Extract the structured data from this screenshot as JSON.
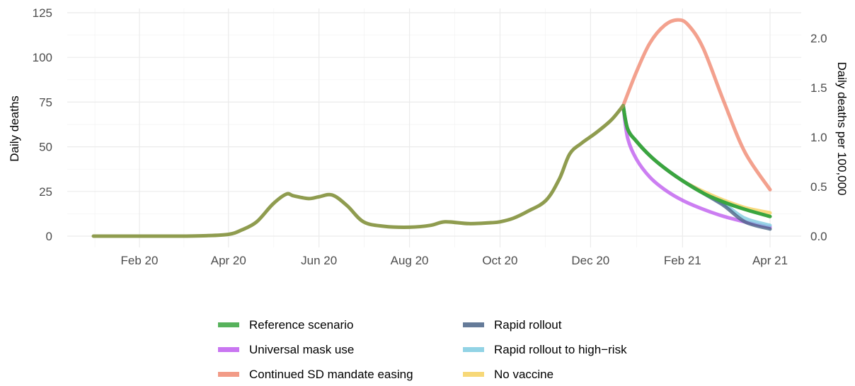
{
  "chart_data": {
    "type": "line",
    "ylabel": "Daily deaths",
    "y2label": "Daily deaths per 100,000",
    "ylim": [
      0,
      125
    ],
    "y2lim": [
      0,
      2.2
    ],
    "grid": true,
    "legend_position": "bottom",
    "x_tick_labels": [
      "Feb 20",
      "Apr 20",
      "Jun 20",
      "Aug 20",
      "Oct 20",
      "Dec 20",
      "Feb 21",
      "Apr 21"
    ],
    "x_tick_dates": [
      "2020-02-01",
      "2020-04-01",
      "2020-06-01",
      "2020-08-01",
      "2020-10-01",
      "2020-12-01",
      "2021-02-01",
      "2021-04-01"
    ],
    "y_ticks": [
      0,
      25,
      50,
      75,
      100,
      125
    ],
    "y2_ticks": [
      0.0,
      0.5,
      1.0,
      1.5,
      2.0
    ],
    "y2_tick_labels": [
      "0.0",
      "0.5",
      "1.0",
      "1.5",
      "2.0"
    ],
    "history": {
      "x": [
        "2020-01-01",
        "2020-01-15",
        "2020-02-01",
        "2020-02-15",
        "2020-03-01",
        "2020-03-15",
        "2020-04-01",
        "2020-04-10",
        "2020-04-20",
        "2020-05-01",
        "2020-05-10",
        "2020-05-15",
        "2020-05-25",
        "2020-06-01",
        "2020-06-10",
        "2020-06-20",
        "2020-07-01",
        "2020-07-15",
        "2020-08-01",
        "2020-08-15",
        "2020-08-25",
        "2020-09-10",
        "2020-09-25",
        "2020-10-01",
        "2020-10-10",
        "2020-10-20",
        "2020-11-01",
        "2020-11-10",
        "2020-11-17",
        "2020-11-25",
        "2020-12-05",
        "2020-12-15",
        "2020-12-23"
      ],
      "y": [
        0,
        0,
        0,
        0,
        0,
        0.2,
        1,
        3.5,
        8,
        18,
        23.5,
        22.5,
        21,
        22,
        23,
        17,
        8,
        5.5,
        5,
        6,
        8,
        7,
        7.5,
        8,
        10,
        14,
        20,
        32,
        46,
        52,
        58,
        65,
        73
      ]
    },
    "series": [
      {
        "name": "Reference scenario",
        "color": "#3aa53f",
        "x": [
          "2020-12-23",
          "2020-12-26",
          "2021-01-01",
          "2021-01-10",
          "2021-01-20",
          "2021-02-01",
          "2021-02-15",
          "2021-03-01",
          "2021-03-15",
          "2021-04-01"
        ],
        "y": [
          73,
          60,
          53,
          45,
          38,
          31,
          24,
          19,
          15,
          11
        ]
      },
      {
        "name": "Universal mask use",
        "color": "#bf5eef",
        "x": [
          "2020-12-23",
          "2020-12-26",
          "2021-01-01",
          "2021-01-10",
          "2021-01-20",
          "2021-02-01",
          "2021-02-15",
          "2021-03-01",
          "2021-03-15",
          "2021-04-01"
        ],
        "y": [
          73,
          55,
          43,
          33,
          26,
          20,
          15,
          11,
          8,
          5
        ]
      },
      {
        "name": "Continued SD mandate easing",
        "color": "#f08a72",
        "x": [
          "2020-12-23",
          "2021-01-01",
          "2021-01-10",
          "2021-01-20",
          "2021-01-29",
          "2021-02-05",
          "2021-02-15",
          "2021-03-01",
          "2021-03-15",
          "2021-04-01"
        ],
        "y": [
          73,
          92,
          108,
          118,
          121,
          118,
          105,
          75,
          47,
          26
        ]
      },
      {
        "name": "Rapid rollout",
        "color": "#4a6487",
        "x": [
          "2020-12-23",
          "2020-12-26",
          "2021-01-01",
          "2021-01-10",
          "2021-01-20",
          "2021-02-01",
          "2021-02-15",
          "2021-03-01",
          "2021-03-15",
          "2021-04-01"
        ],
        "y": [
          73,
          60,
          53,
          45,
          38,
          31,
          24,
          17,
          8,
          4
        ]
      },
      {
        "name": "Rapid rollout to high−risk",
        "color": "#7fcbe0",
        "x": [
          "2020-12-23",
          "2020-12-26",
          "2021-01-01",
          "2021-01-10",
          "2021-01-20",
          "2021-02-01",
          "2021-02-15",
          "2021-03-01",
          "2021-03-15",
          "2021-04-01"
        ],
        "y": [
          73,
          60,
          53,
          45,
          38,
          31,
          24,
          18,
          10,
          6
        ]
      },
      {
        "name": "No vaccine",
        "color": "#f6d160",
        "x": [
          "2020-12-23",
          "2020-12-26",
          "2021-01-01",
          "2021-01-10",
          "2021-01-20",
          "2021-02-01",
          "2021-02-15",
          "2021-03-01",
          "2021-03-15",
          "2021-04-01"
        ],
        "y": [
          73,
          60,
          53,
          45,
          38,
          31,
          25,
          20,
          16,
          13
        ]
      }
    ],
    "history_color": "#8f9c4f"
  }
}
